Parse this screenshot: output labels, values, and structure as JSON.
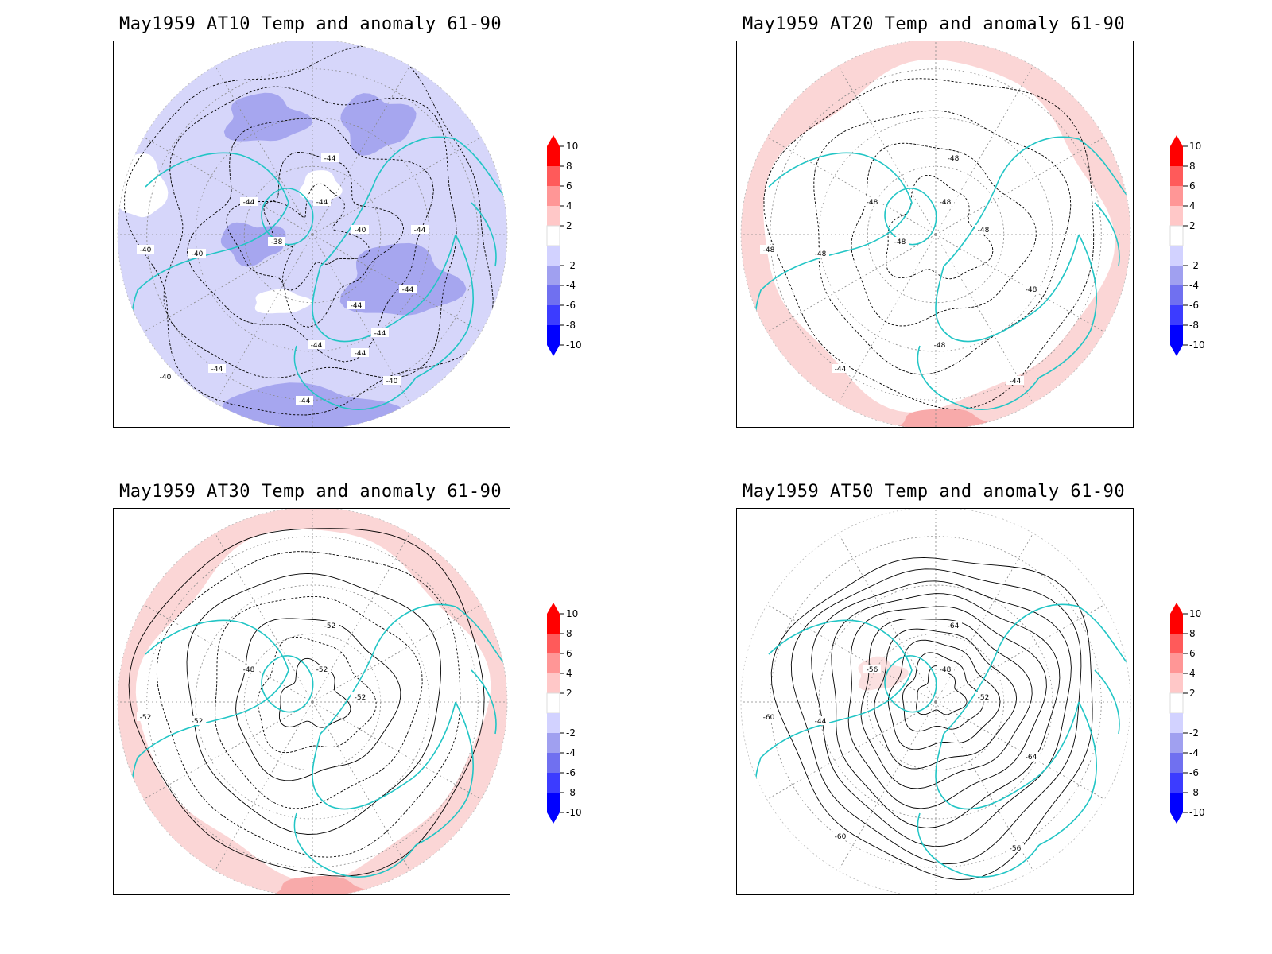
{
  "panels": [
    {
      "title": "May1959 AT10 Temp and anomaly 61-90",
      "contour_labels": [
        "-44",
        "-40",
        "-44",
        "-40",
        "-44",
        "-40",
        "-40",
        "-44",
        "-44",
        "-38",
        "-44",
        "-44",
        "-44",
        "-44",
        "-40",
        "-44",
        "-44"
      ],
      "anomaly_field": "negative"
    },
    {
      "title": "May1959 AT20 Temp and anomaly 61-90",
      "contour_labels": [
        "-48",
        "-48",
        "-48",
        "-48",
        "-48",
        "-48",
        "-44",
        "-44",
        "-48",
        "-48",
        "-48"
      ],
      "anomaly_field": "positive-ring"
    },
    {
      "title": "May1959 AT30 Temp and anomaly 61-90",
      "contour_labels": [
        "-52",
        "-52",
        "-48",
        "-52",
        "-52",
        "-52"
      ],
      "anomaly_field": "positive-ring"
    },
    {
      "title": "May1959 AT50 Temp and anomaly 61-90",
      "contour_labels": [
        "-64",
        "-60",
        "-56",
        "-44",
        "-48",
        "-52",
        "-56",
        "-60",
        "-64"
      ],
      "anomaly_field": "weak-positive"
    }
  ],
  "colorbar": {
    "tick_labels": [
      "10",
      "8",
      "6",
      "4",
      "2",
      "-2",
      "-4",
      "-6",
      "-8",
      "-10"
    ],
    "colors": [
      "#ff0000",
      "#ff5a5a",
      "#ff9696",
      "#ffc8c8",
      "#ffffff",
      "#d2d2ff",
      "#a0a0f0",
      "#7070f0",
      "#3c3cff",
      "#0000ff"
    ]
  },
  "colors": {
    "coast": "#22c5c5",
    "contour": "#000000",
    "grid": "#888888"
  }
}
